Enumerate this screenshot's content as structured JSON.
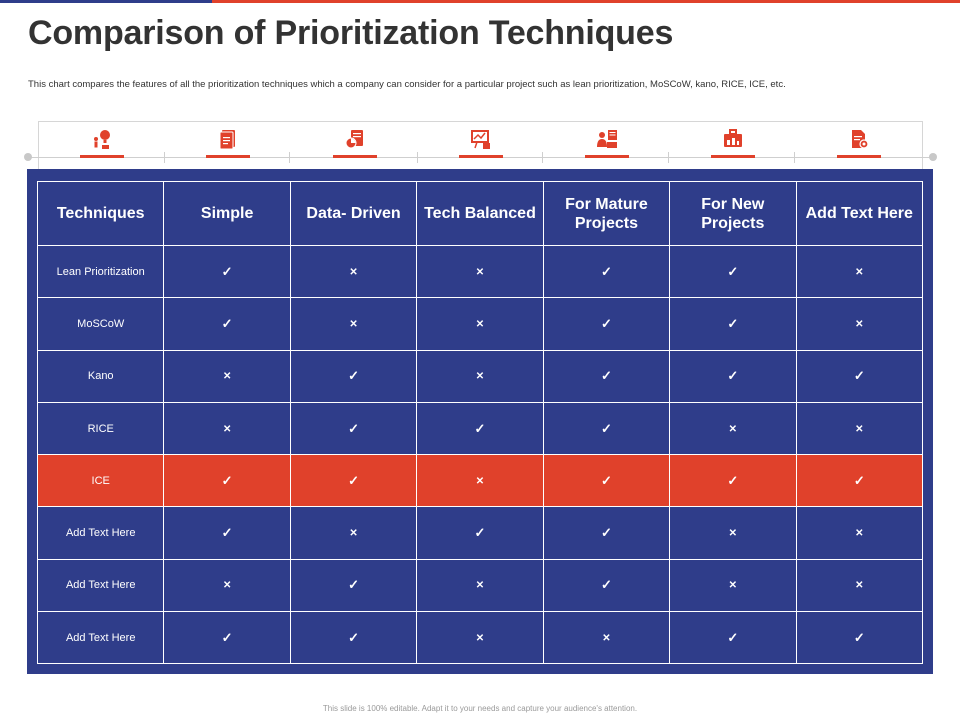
{
  "colors": {
    "navy": "#2f3d8a",
    "accent": "#e0412b",
    "white": "#ffffff"
  },
  "title": "Comparison of Prioritization Techniques",
  "subtitle": "This chart compares the features of  all the prioritization techniques which a company can consider for a particular project such as lean prioritization, MoSCoW, kano, RICE, ICE, etc.",
  "icons": [
    "lightbulb-person-icon",
    "document-icon",
    "report-icon",
    "presentation-board-icon",
    "team-icon",
    "briefcase-icon",
    "file-settings-icon"
  ],
  "table": {
    "headers": [
      "Techniques",
      "Simple",
      "Data- Driven",
      "Tech Balanced",
      "For Mature Projects",
      "For New Projects",
      "Add Text Here"
    ],
    "yes_symbol": "✓",
    "no_symbol": "✕",
    "rows": [
      {
        "label": "Lean Prioritization",
        "values": [
          true,
          false,
          false,
          true,
          true,
          false
        ]
      },
      {
        "label": "MoSCoW",
        "values": [
          true,
          false,
          false,
          true,
          true,
          false
        ]
      },
      {
        "label": "Kano",
        "values": [
          false,
          true,
          false,
          true,
          true,
          true
        ]
      },
      {
        "label": "RICE",
        "values": [
          false,
          true,
          true,
          true,
          false,
          false
        ]
      },
      {
        "label": "ICE",
        "values": [
          true,
          true,
          false,
          true,
          true,
          true
        ],
        "highlight": true
      },
      {
        "label": "Add Text Here",
        "values": [
          true,
          false,
          true,
          true,
          false,
          false
        ]
      },
      {
        "label": "Add Text Here",
        "values": [
          false,
          true,
          false,
          true,
          false,
          false
        ]
      },
      {
        "label": "Add Text Here",
        "values": [
          true,
          true,
          false,
          false,
          true,
          true
        ]
      }
    ]
  },
  "footer": "This slide is 100% editable. Adapt it to your needs and capture your audience's attention."
}
